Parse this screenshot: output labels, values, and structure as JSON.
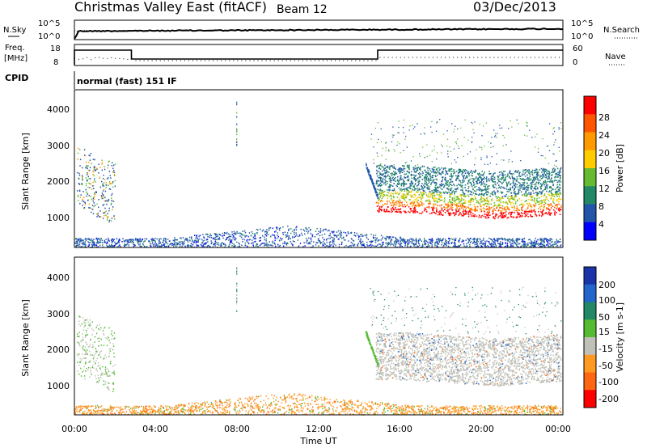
{
  "header": {
    "station": "Christmas Valley East (fitACF)",
    "beam": "Beam 12",
    "date": "03/Dec/2013"
  },
  "noise_panel": {
    "left_label": "N.Sky",
    "right_label": "N.Search",
    "tick_top": "10^5",
    "tick_bottom": "10^0"
  },
  "freq_panel": {
    "left_label_1": "Freq.",
    "left_label_2": "[MHz]",
    "right_label": "Nave",
    "left_ticks": [
      "18",
      "8"
    ],
    "right_ticks": [
      "60",
      "0"
    ]
  },
  "cpid_panel": {
    "label": "CPID",
    "text": "normal (fast) 151 IF"
  },
  "power_panel": {
    "ylabel": "Slant Range [km]",
    "y_ticks": [
      "4000",
      "3000",
      "2000",
      "1000"
    ],
    "colorbar_label": "Power [dB]",
    "colorbar_ticks": [
      "28",
      "24",
      "20",
      "16",
      "12",
      "8",
      "4"
    ]
  },
  "velocity_panel": {
    "ylabel": "Slant Range [km]",
    "y_ticks": [
      "4000",
      "3000",
      "2000",
      "1000"
    ],
    "colorbar_label": "Velocity [m s-1]",
    "colorbar_ticks": [
      "200",
      "100",
      "50",
      "15",
      "-15",
      "-50",
      "-100",
      "-200"
    ]
  },
  "x_axis": {
    "ticks": [
      "00:00",
      "04:00",
      "08:00",
      "12:00",
      "16:00",
      "20:00",
      "00:00"
    ],
    "label": "Time UT"
  },
  "chart_data": {
    "type": "heatmap",
    "x_range_hours": [
      0,
      24
    ],
    "y_range_km": [
      180,
      4500
    ],
    "frequency_segments": [
      {
        "start_h": 0.0,
        "end_h": 2.8,
        "freq_mhz": 16
      },
      {
        "start_h": 2.8,
        "end_h": 14.9,
        "freq_mhz": 10.5
      },
      {
        "start_h": 14.9,
        "end_h": 24.0,
        "freq_mhz": 16
      }
    ],
    "power_colors": [
      "#ff0000",
      "#ff5500",
      "#ff9900",
      "#ffcc00",
      "#66bb33",
      "#228866",
      "#2255aa",
      "#0000ff"
    ],
    "velocity_colors": [
      "#1a33a8",
      "#2266cc",
      "#228866",
      "#55bb33",
      "#c0c0b8",
      "#ff9922",
      "#ff6611",
      "#ff0000"
    ]
  }
}
